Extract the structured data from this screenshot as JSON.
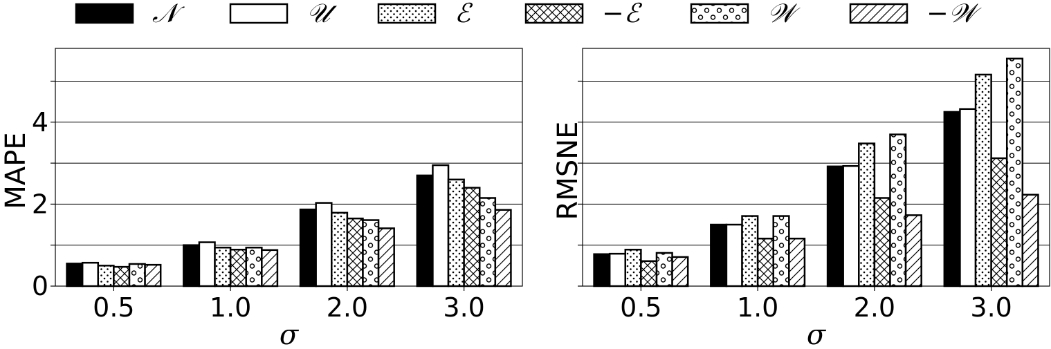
{
  "legend": {
    "entries": [
      {
        "label": "𝒩",
        "pattern": "solid"
      },
      {
        "label": "𝒰",
        "pattern": "white"
      },
      {
        "label": "ℰ",
        "pattern": "dots"
      },
      {
        "label": "−ℰ",
        "pattern": "crosshatch"
      },
      {
        "label": "𝒲",
        "pattern": "circles"
      },
      {
        "label": "−𝒲",
        "pattern": "diagonal"
      }
    ]
  },
  "chart_data": [
    {
      "type": "bar",
      "title": "",
      "xlabel": "σ",
      "ylabel": "MAPE",
      "categories": [
        "0.5",
        "1.0",
        "2.0",
        "3.0"
      ],
      "ylim": [
        0,
        5.8
      ],
      "yticks": [
        0,
        2,
        4
      ],
      "ytick_labels": [
        "0",
        "2",
        "4"
      ],
      "grid_lines": [
        1,
        2,
        3,
        4,
        5
      ],
      "series": [
        {
          "name": "𝒩",
          "values": [
            0.55,
            1.0,
            1.87,
            2.7
          ]
        },
        {
          "name": "𝒰",
          "values": [
            0.57,
            1.07,
            2.03,
            2.95
          ]
        },
        {
          "name": "ℰ",
          "values": [
            0.5,
            0.94,
            1.79,
            2.6
          ]
        },
        {
          "name": "−ℰ",
          "values": [
            0.47,
            0.89,
            1.65,
            2.4
          ]
        },
        {
          "name": "𝒲",
          "values": [
            0.54,
            0.94,
            1.61,
            2.15
          ]
        },
        {
          "name": "−𝒲",
          "values": [
            0.52,
            0.88,
            1.41,
            1.86
          ]
        }
      ]
    },
    {
      "type": "bar",
      "title": "",
      "xlabel": "σ",
      "ylabel": "RMSNE",
      "categories": [
        "0.5",
        "1.0",
        "2.0",
        "3.0"
      ],
      "ylim": [
        0,
        5.8
      ],
      "yticks": [],
      "ytick_labels": [],
      "grid_lines": [
        1,
        2,
        3,
        4,
        5
      ],
      "series": [
        {
          "name": "𝒩",
          "values": [
            0.78,
            1.5,
            2.92,
            4.25
          ]
        },
        {
          "name": "𝒰",
          "values": [
            0.79,
            1.5,
            2.93,
            4.32
          ]
        },
        {
          "name": "ℰ",
          "values": [
            0.89,
            1.71,
            3.48,
            5.16
          ]
        },
        {
          "name": "−ℰ",
          "values": [
            0.61,
            1.16,
            2.15,
            3.12
          ]
        },
        {
          "name": "𝒲",
          "values": [
            0.81,
            1.71,
            3.7,
            5.55
          ]
        },
        {
          "name": "−𝒲",
          "values": [
            0.71,
            1.16,
            1.73,
            2.23
          ]
        }
      ]
    }
  ]
}
